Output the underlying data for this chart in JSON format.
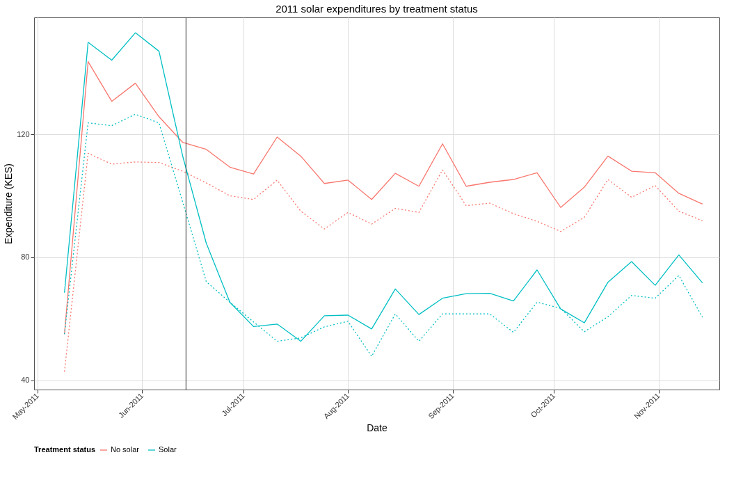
{
  "chart_data": {
    "type": "line",
    "title": "2011 solar expenditures by treatment status",
    "xlabel": "Date",
    "ylabel": "Expenditure (KES)",
    "legend_title": "Treatment status",
    "x": [
      "2011-05-09",
      "2011-05-16",
      "2011-05-23",
      "2011-05-30",
      "2011-06-06",
      "2011-06-13",
      "2011-06-20",
      "2011-06-27",
      "2011-07-04",
      "2011-07-11",
      "2011-07-18",
      "2011-07-25",
      "2011-08-01",
      "2011-08-08",
      "2011-08-15",
      "2011-08-22",
      "2011-08-29",
      "2011-09-05",
      "2011-09-12",
      "2011-09-19",
      "2011-09-26",
      "2011-10-03",
      "2011-10-10",
      "2011-10-17",
      "2011-10-24",
      "2011-10-31",
      "2011-11-07",
      "2011-11-14"
    ],
    "series": [
      {
        "name": "No solar",
        "color": "#f8766d",
        "line_style": "solid",
        "values": [
          55,
          143.6,
          130.7,
          136.6,
          125.7,
          117.4,
          115.1,
          109.3,
          107.1,
          119.1,
          112.9,
          104,
          105.1,
          98.8,
          107.3,
          103.1,
          116.9,
          103.1,
          104.4,
          105.3,
          107.5,
          96.2,
          102.8,
          112.9,
          108,
          107.5,
          100.8,
          97.3
        ]
      },
      {
        "color": "#f8766d",
        "line_style": "dotted",
        "values": [
          42.8,
          113.8,
          110.3,
          111,
          110.8,
          108,
          104.2,
          100,
          98.8,
          105.1,
          95,
          89.2,
          94.6,
          90.8,
          95.9,
          94.6,
          108.4,
          96.8,
          97.6,
          94.2,
          91.7,
          88.4,
          93,
          105.3,
          99.5,
          103.3,
          95,
          91.9
        ]
      },
      {
        "name": "Solar",
        "color": "#00bfc4",
        "line_style": "solid",
        "values": [
          68.5,
          149.9,
          144.1,
          153,
          147,
          113,
          84.6,
          65.4,
          57.5,
          58.3,
          52.7,
          61,
          61.2,
          56.7,
          69.7,
          61.4,
          66.7,
          68.2,
          68.3,
          65.8,
          75.9,
          63.2,
          58.7,
          71.9,
          78.6,
          70.9,
          80.8,
          71.7
        ]
      },
      {
        "color": "#00bfc4",
        "line_style": "dotted",
        "values": [
          55,
          123.7,
          122.8,
          126.5,
          123.7,
          98,
          72.1,
          65.4,
          59,
          52.7,
          53.8,
          57.4,
          59.2,
          47.8,
          61.6,
          52.7,
          61.6,
          61.6,
          61.6,
          55.6,
          65.4,
          63.4,
          55.8,
          60.7,
          67.6,
          66.7,
          74.1,
          60.5
        ]
      }
    ],
    "ref_lines": [
      {
        "axis": "x",
        "value": "2011-06-14",
        "color": "#333333"
      }
    ],
    "xlim": [
      "2011-04-30",
      "2011-11-19"
    ],
    "xticks": [
      {
        "value": "2011-05-01",
        "label": "May-2011"
      },
      {
        "value": "2011-06-01",
        "label": "Jun-2011"
      },
      {
        "value": "2011-07-01",
        "label": "Jul-2011"
      },
      {
        "value": "2011-08-01",
        "label": "Aug-2011"
      },
      {
        "value": "2011-09-01",
        "label": "Sep-2011"
      },
      {
        "value": "2011-10-01",
        "label": "Oct-2011"
      },
      {
        "value": "2011-11-01",
        "label": "Nov-2011"
      }
    ],
    "ylim": [
      37,
      158
    ],
    "yticks": [
      40,
      80,
      120
    ],
    "grid": true,
    "legend": "bottom"
  }
}
